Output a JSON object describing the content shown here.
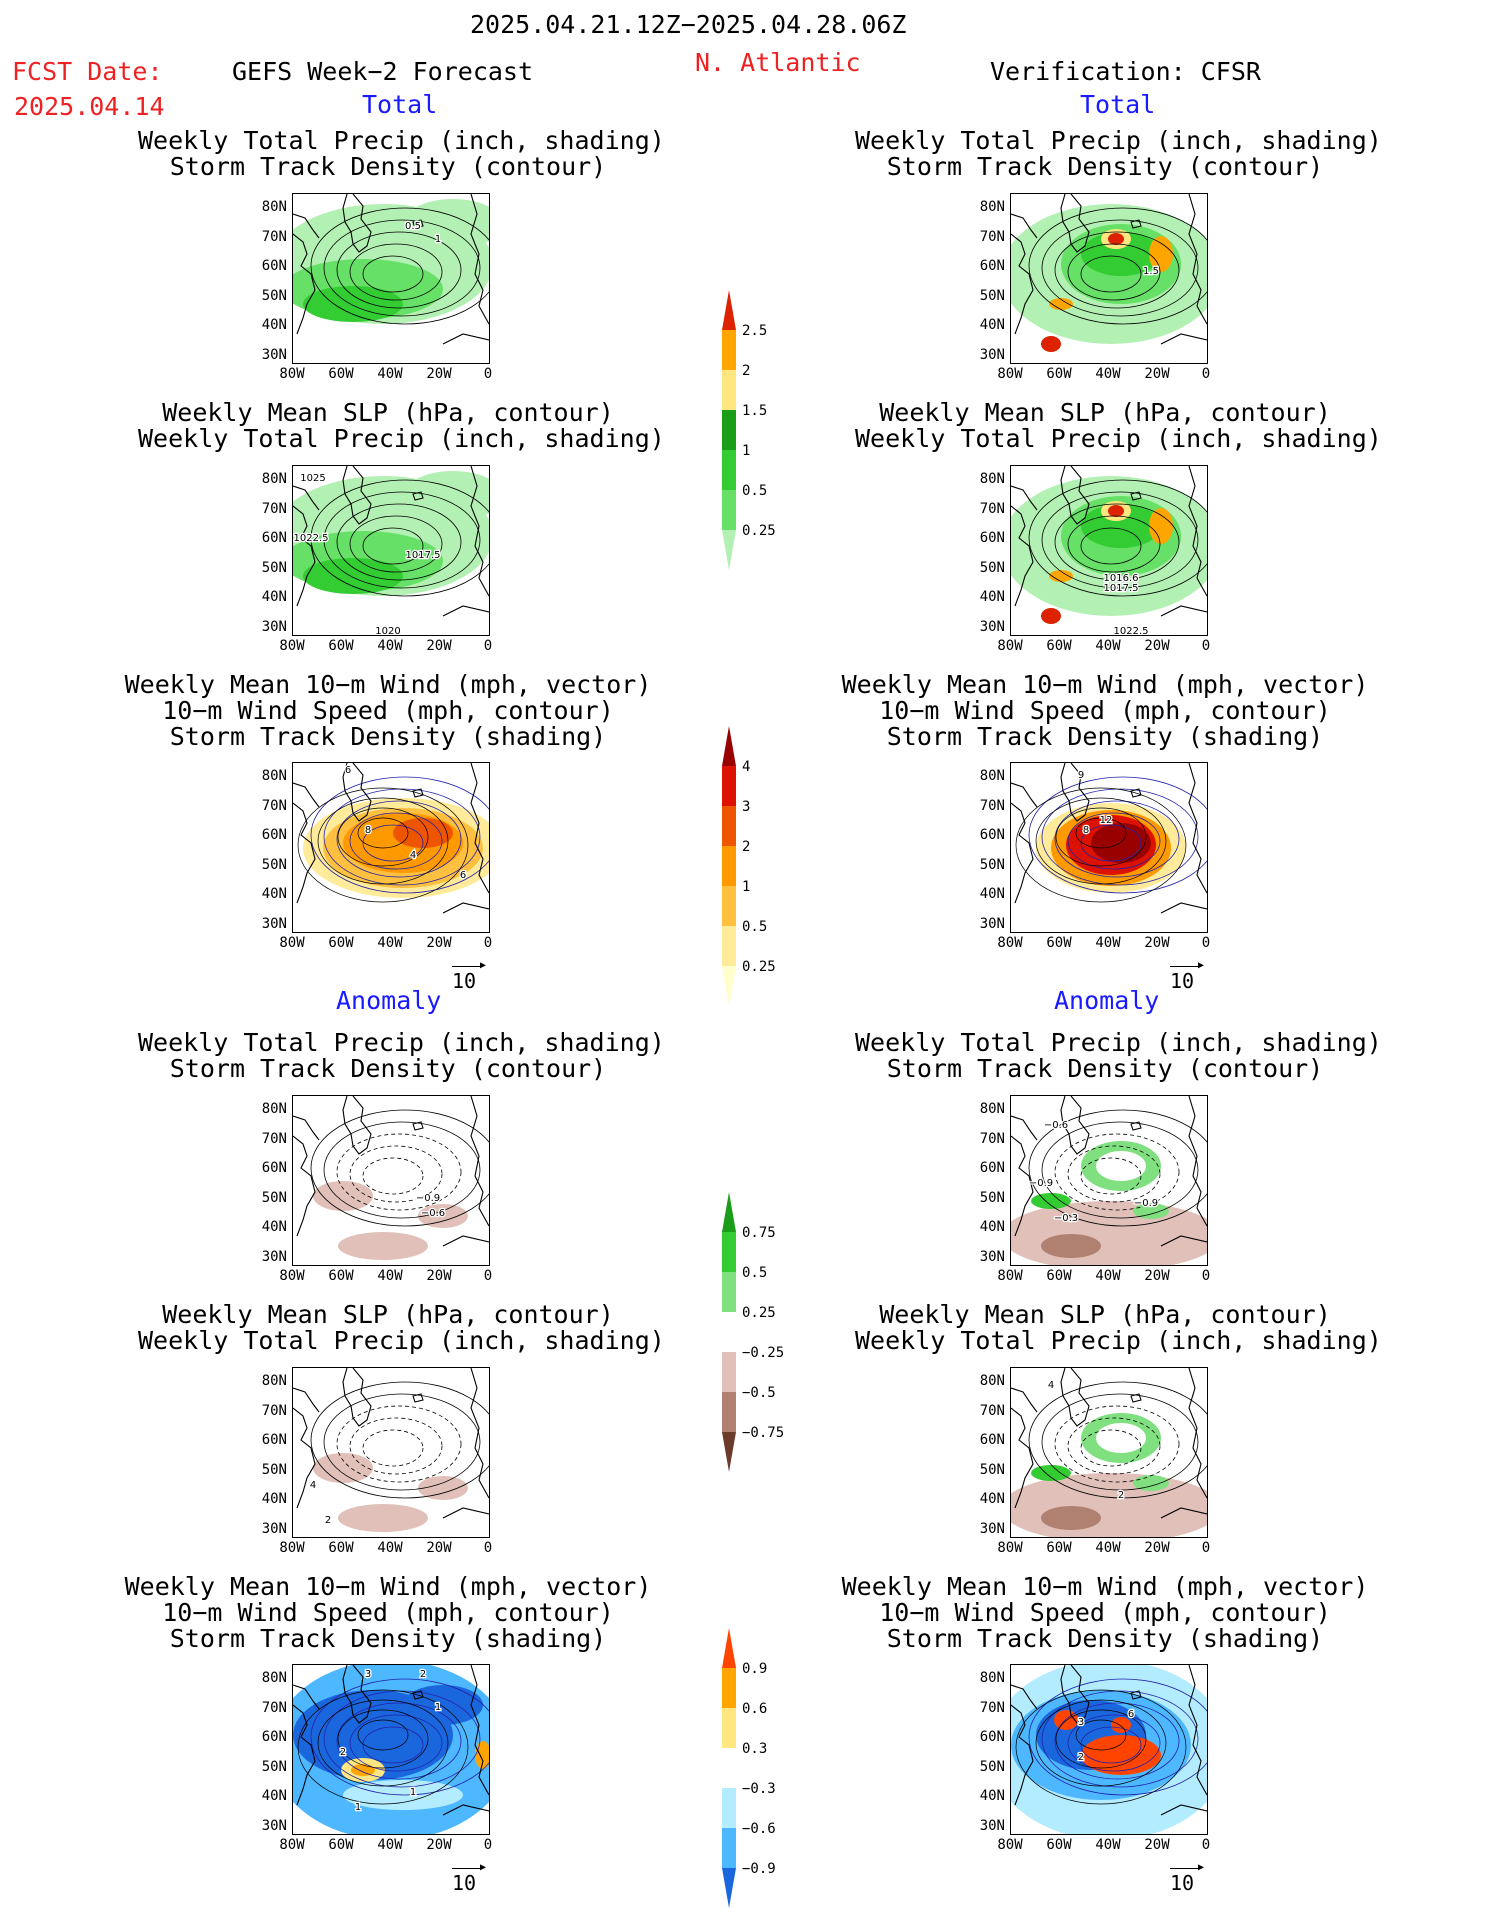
{
  "header": {
    "period": "2025.04.21.12Z−2025.04.28.06Z",
    "fcst_label": "FCST Date:",
    "fcst_date": "2025.04.14",
    "model": "GEFS Week−2 Forecast",
    "region": "N. Atlantic",
    "verification": "Verification: CFSR"
  },
  "sections": {
    "total": "Total",
    "anomaly": "Anomaly"
  },
  "titles": {
    "precip_track": [
      "Weekly Total Precip (inch, shading)",
      "Storm Track Density (contour)"
    ],
    "slp_precip": [
      "Weekly Mean SLP (hPa, contour)",
      "Weekly Total Precip (inch, shading)"
    ],
    "wind_track": [
      "Weekly Mean 10−m Wind (mph, vector)",
      "10−m Wind Speed (mph, contour)",
      "Storm Track Density (shading)"
    ]
  },
  "axes": {
    "lat": [
      "80N",
      "70N",
      "60N",
      "50N",
      "40N",
      "30N"
    ],
    "lon": [
      "80W",
      "60W",
      "40W",
      "20W",
      "0"
    ]
  },
  "vector_ref": "10",
  "colorbars": {
    "precip_total": {
      "labels": [
        "2.5",
        "2",
        "1.5",
        "1",
        "0.5",
        "0.25"
      ],
      "colors": [
        "#dd2200",
        "#ffa500",
        "#ffe680",
        "#1a9e1a",
        "#33cc33",
        "#66e066",
        "#b3f0b3"
      ]
    },
    "track_total": {
      "labels": [
        "4",
        "3",
        "2",
        "1",
        "0.5",
        "0.25"
      ],
      "colors": [
        "#990000",
        "#dd1100",
        "#ee5500",
        "#ff9900",
        "#ffc040",
        "#ffeb99",
        "#ffffcc"
      ]
    },
    "precip_anom": {
      "labels": [
        "0.75",
        "0.5",
        "0.25",
        "−0.25",
        "−0.5",
        "−0.75"
      ],
      "colors": [
        "#1a9e1a",
        "#33cc33",
        "#80e080",
        "#ffffff",
        "#e0c0b8",
        "#b08070",
        "#6b3b2b"
      ]
    },
    "track_anom": {
      "labels": [
        "0.9",
        "0.6",
        "0.3",
        "−0.3",
        "−0.6",
        "−0.9"
      ],
      "colors": [
        "#ff4400",
        "#ffa500",
        "#ffe680",
        "#ffffff",
        "#b3ecff",
        "#4db8ff",
        "#1a66dd"
      ]
    }
  },
  "panel_labels": {
    "p1": [
      "0.5",
      "1"
    ],
    "p2": [
      "1025",
      "1022.5",
      "1017.5",
      "1020"
    ],
    "p3": [
      "6",
      "8",
      "4",
      "6"
    ],
    "p4": [
      "1.5"
    ],
    "p5": [
      "1016.6",
      "1017.5",
      "1022.5"
    ],
    "p6": [
      "9",
      "12",
      "8"
    ],
    "p7": [
      "−0.9",
      "−0.6"
    ],
    "p8": [
      "−0.6",
      "−0.9",
      "−0.3",
      "−0.9"
    ],
    "p9": [
      "4",
      "2"
    ],
    "p10": [
      "4",
      "2"
    ],
    "p11": [
      "3",
      "2",
      "1",
      "2",
      "1",
      "1"
    ],
    "p12": [
      "6",
      "3",
      "2"
    ]
  }
}
